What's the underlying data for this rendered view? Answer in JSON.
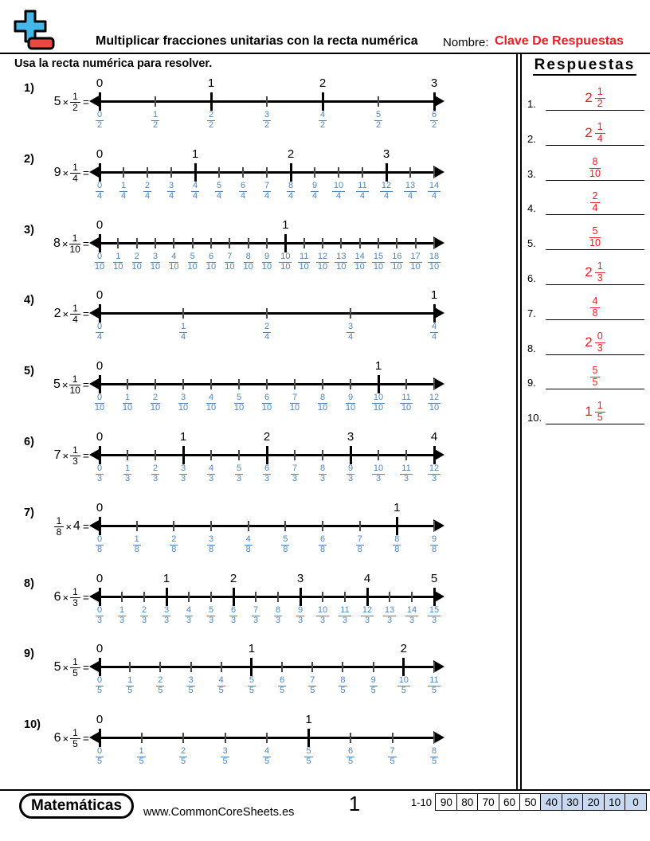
{
  "header": {
    "title": "Multiplicar fracciones unitarias con la recta numérica",
    "name_label": "Nombre:",
    "name_value": "Clave De Respuestas"
  },
  "instruction": "Usa la recta numérica para resolver.",
  "answers_panel": {
    "title": "Respuestas",
    "items": [
      {
        "num": "1.",
        "whole": "2",
        "n": "1",
        "d": "2"
      },
      {
        "num": "2.",
        "whole": "2",
        "n": "1",
        "d": "4"
      },
      {
        "num": "3.",
        "whole": "",
        "n": "8",
        "d": "10"
      },
      {
        "num": "4.",
        "whole": "",
        "n": "2",
        "d": "4"
      },
      {
        "num": "5.",
        "whole": "",
        "n": "5",
        "d": "10"
      },
      {
        "num": "6.",
        "whole": "2",
        "n": "1",
        "d": "3"
      },
      {
        "num": "7.",
        "whole": "",
        "n": "4",
        "d": "8"
      },
      {
        "num": "8.",
        "whole": "2",
        "n": "0",
        "d": "3"
      },
      {
        "num": "9.",
        "whole": "",
        "n": "5",
        "d": "5"
      },
      {
        "num": "10.",
        "whole": "1",
        "n": "1",
        "d": "5"
      }
    ]
  },
  "problems": [
    {
      "label": "1)",
      "order": "whole-first",
      "multiplier": "5",
      "times": "×",
      "equals": "=",
      "frac": {
        "n": "1",
        "d": "2"
      },
      "line": {
        "denominator": "2",
        "numerators": [
          "0",
          "1",
          "2",
          "3",
          "4",
          "5",
          "6"
        ],
        "integers": {
          "0": "0",
          "2": "1",
          "4": "2",
          "6": "3"
        }
      }
    },
    {
      "label": "2)",
      "order": "whole-first",
      "multiplier": "9",
      "times": "×",
      "equals": "=",
      "frac": {
        "n": "1",
        "d": "4"
      },
      "line": {
        "denominator": "4",
        "numerators": [
          "0",
          "1",
          "2",
          "3",
          "4",
          "5",
          "6",
          "7",
          "8",
          "9",
          "10",
          "11",
          "12",
          "13",
          "14"
        ],
        "integers": {
          "0": "0",
          "4": "1",
          "8": "2",
          "12": "3"
        }
      }
    },
    {
      "label": "3)",
      "order": "whole-first",
      "multiplier": "8",
      "times": "×",
      "equals": "=",
      "frac": {
        "n": "1",
        "d": "10"
      },
      "line": {
        "denominator": "10",
        "numerators": [
          "0",
          "1",
          "2",
          "3",
          "4",
          "5",
          "6",
          "7",
          "8",
          "9",
          "10",
          "11",
          "12",
          "13",
          "14",
          "15",
          "16",
          "17",
          "18"
        ],
        "integers": {
          "0": "0",
          "10": "1"
        }
      }
    },
    {
      "label": "4)",
      "order": "whole-first",
      "multiplier": "2",
      "times": "×",
      "equals": "=",
      "frac": {
        "n": "1",
        "d": "4"
      },
      "line": {
        "denominator": "4",
        "numerators": [
          "0",
          "1",
          "2",
          "3",
          "4"
        ],
        "integers": {
          "0": "0",
          "4": "1"
        }
      }
    },
    {
      "label": "5)",
      "order": "whole-first",
      "multiplier": "5",
      "times": "×",
      "equals": "=",
      "frac": {
        "n": "1",
        "d": "10"
      },
      "line": {
        "denominator": "10",
        "numerators": [
          "0",
          "1",
          "2",
          "3",
          "4",
          "5",
          "6",
          "7",
          "8",
          "9",
          "10",
          "11",
          "12"
        ],
        "integers": {
          "0": "0",
          "10": "1"
        }
      }
    },
    {
      "label": "6)",
      "order": "whole-first",
      "multiplier": "7",
      "times": "×",
      "equals": "=",
      "frac": {
        "n": "1",
        "d": "3"
      },
      "line": {
        "denominator": "3",
        "numerators": [
          "0",
          "1",
          "2",
          "3",
          "4",
          "5",
          "6",
          "7",
          "8",
          "9",
          "10",
          "11",
          "12"
        ],
        "integers": {
          "0": "0",
          "3": "1",
          "6": "2",
          "9": "3",
          "12": "4"
        }
      }
    },
    {
      "label": "7)",
      "order": "fraction-first",
      "multiplier": "4",
      "times": "×",
      "equals": "=",
      "frac": {
        "n": "1",
        "d": "8"
      },
      "line": {
        "denominator": "8",
        "numerators": [
          "0",
          "1",
          "2",
          "3",
          "4",
          "5",
          "6",
          "7",
          "8",
          "9"
        ],
        "integers": {
          "0": "0",
          "8": "1"
        }
      }
    },
    {
      "label": "8)",
      "order": "whole-first",
      "multiplier": "6",
      "times": "×",
      "equals": "=",
      "frac": {
        "n": "1",
        "d": "3"
      },
      "line": {
        "denominator": "3",
        "numerators": [
          "0",
          "1",
          "2",
          "3",
          "4",
          "5",
          "6",
          "7",
          "8",
          "9",
          "10",
          "11",
          "12",
          "13",
          "14",
          "15"
        ],
        "integers": {
          "0": "0",
          "3": "1",
          "6": "2",
          "9": "3",
          "12": "4",
          "15": "5"
        }
      }
    },
    {
      "label": "9)",
      "order": "whole-first",
      "multiplier": "5",
      "times": "×",
      "equals": "=",
      "frac": {
        "n": "1",
        "d": "5"
      },
      "line": {
        "denominator": "5",
        "numerators": [
          "0",
          "1",
          "2",
          "3",
          "4",
          "5",
          "6",
          "7",
          "8",
          "9",
          "10",
          "11"
        ],
        "integers": {
          "0": "0",
          "5": "1",
          "10": "2"
        }
      }
    },
    {
      "label": "10)",
      "order": "whole-first",
      "multiplier": "6",
      "times": "×",
      "equals": "=",
      "frac": {
        "n": "1",
        "d": "5"
      },
      "line": {
        "denominator": "5",
        "numerators": [
          "0",
          "1",
          "2",
          "3",
          "4",
          "5",
          "6",
          "7",
          "8"
        ],
        "integers": {
          "0": "0",
          "5": "1"
        }
      }
    }
  ],
  "footer": {
    "brand": "Matemáticas",
    "website": "www.CommonCoreSheets.es",
    "page_number": "1",
    "score_label": "1-10",
    "score_cells": [
      {
        "v": "90",
        "hl": false
      },
      {
        "v": "80",
        "hl": false
      },
      {
        "v": "70",
        "hl": false
      },
      {
        "v": "60",
        "hl": false
      },
      {
        "v": "50",
        "hl": false
      },
      {
        "v": "40",
        "hl": true
      },
      {
        "v": "30",
        "hl": true
      },
      {
        "v": "20",
        "hl": true
      },
      {
        "v": "10",
        "hl": true
      },
      {
        "v": "0",
        "hl": true
      }
    ]
  },
  "colors": {
    "fraction_blue": "#4d86bb",
    "answer_red": "#ee1c23",
    "score_highlight": "#c6d9f0",
    "icon_blue": "#45b6e8",
    "icon_red": "#e84a41"
  }
}
